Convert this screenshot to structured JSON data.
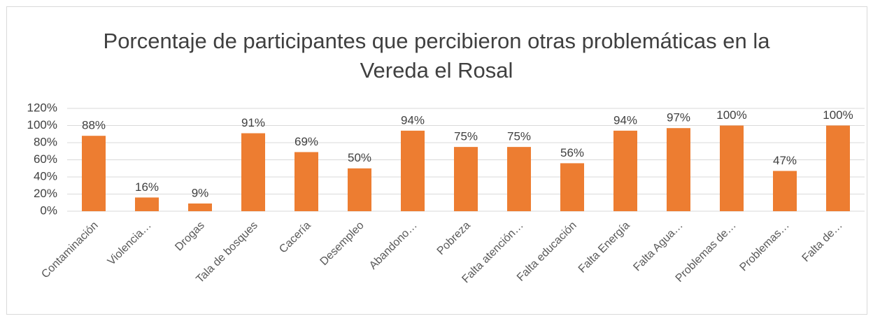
{
  "chart_data": {
    "type": "bar",
    "title": "Porcentaje de participantes que percibieron otras problemáticas en la Vereda el Rosal",
    "categories": [
      "Contaminación",
      "Violencia…",
      "Drogas",
      "Tala de bosques",
      "Cacería",
      "Desempleo",
      "Abandono…",
      "Pobreza",
      "Falta atención…",
      "Falta educación",
      "Falta Energía",
      "Falta Agua…",
      "Problemas de…",
      "Problemas…",
      "Falta de…"
    ],
    "values": [
      88,
      16,
      9,
      91,
      69,
      50,
      94,
      75,
      75,
      56,
      94,
      97,
      100,
      47,
      100
    ],
    "value_labels": [
      "88%",
      "16%",
      "9%",
      "91%",
      "69%",
      "50%",
      "94%",
      "75%",
      "75%",
      "56%",
      "94%",
      "97%",
      "100%",
      "47%",
      "100%"
    ],
    "color": "#ed7d31",
    "ylim": [
      0,
      120
    ],
    "yticks": [
      {
        "value": 0,
        "label": "0%"
      },
      {
        "value": 20,
        "label": "20%"
      },
      {
        "value": 40,
        "label": "40%"
      },
      {
        "value": 60,
        "label": "60%"
      },
      {
        "value": 80,
        "label": "80%"
      },
      {
        "value": 100,
        "label": "100%"
      },
      {
        "value": 120,
        "label": "120%"
      }
    ],
    "grid": true
  }
}
